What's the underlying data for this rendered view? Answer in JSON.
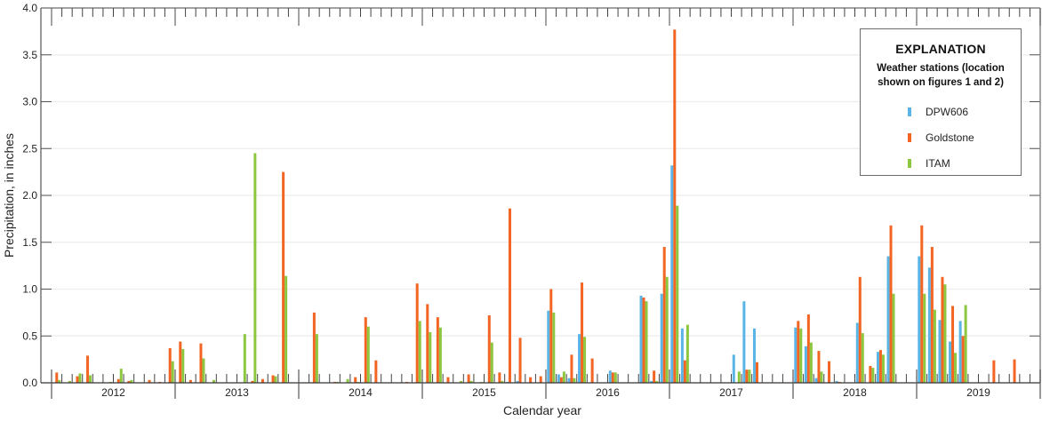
{
  "chart_data": {
    "type": "bar",
    "title": "",
    "xlabel": "Calendar year",
    "ylabel": "Precipitation, in inches",
    "ylim": [
      0,
      4.0
    ],
    "yticks": [
      "0.0",
      "0.5",
      "1.0",
      "1.5",
      "2.0",
      "2.5",
      "3.0",
      "3.5",
      "4.0"
    ],
    "grid": true,
    "legend_position": "upper right",
    "years": [
      "2012",
      "2013",
      "2014",
      "2015",
      "2016",
      "2017",
      "2018",
      "2019"
    ],
    "categories_note": "Monthly bars, January 2012 through December 2019 (96 months)",
    "series": [
      {
        "name": "DPW606",
        "color": "#5ab4e5",
        "values": [
          0,
          0,
          0,
          0,
          0,
          0,
          0,
          0,
          0,
          0,
          0,
          0,
          0,
          0,
          0,
          0,
          0,
          0,
          0,
          0,
          0,
          0,
          0,
          0,
          0,
          0,
          0,
          0,
          0,
          0,
          0,
          0,
          0,
          0,
          0,
          0,
          0,
          0,
          0,
          0,
          0,
          0,
          0,
          0,
          0.01,
          0.02,
          0,
          0,
          0.77,
          0.09,
          0.05,
          0.52,
          0,
          0,
          0.13,
          0,
          0,
          0.93,
          0.02,
          0.95,
          2.32,
          0.58,
          0,
          0,
          0,
          0,
          0.3,
          0.87,
          0.58,
          0,
          0,
          0,
          0.59,
          0.39,
          0.05,
          0,
          0.02,
          0,
          0.64,
          0,
          0.33,
          1.35,
          0,
          0,
          1.35,
          1.23,
          0.67,
          0.44,
          0.66,
          0,
          0,
          0,
          0,
          0,
          0,
          0
        ]
      },
      {
        "name": "Goldstone",
        "color": "#f26522",
        "values": [
          0.11,
          0,
          0.07,
          0.29,
          0,
          0,
          0.04,
          0.02,
          0,
          0.03,
          0.01,
          0.37,
          0.44,
          0.03,
          0.42,
          0,
          0,
          0,
          0,
          0.02,
          0.04,
          0.08,
          2.25,
          0,
          0,
          0.75,
          0,
          0.01,
          0,
          0.06,
          0.7,
          0.24,
          0,
          0,
          0.01,
          1.06,
          0.84,
          0.7,
          0.06,
          0,
          0.09,
          0,
          0.72,
          0.11,
          1.86,
          0.48,
          0.06,
          0.07,
          1.0,
          0.06,
          0.3,
          1.07,
          0.26,
          0,
          0.11,
          0,
          0,
          0.91,
          0.13,
          1.45,
          3.77,
          0.24,
          0,
          0,
          0,
          0,
          0,
          0.14,
          0.22,
          0,
          0,
          0,
          0.66,
          0.73,
          0.34,
          0.23,
          0.01,
          0,
          1.13,
          0.18,
          0.35,
          1.68,
          0,
          0,
          1.68,
          1.45,
          1.13,
          0.82,
          0.5,
          0,
          0,
          0.24,
          0,
          0.25,
          0,
          0
        ]
      },
      {
        "name": "ITAM",
        "color": "#8dc63f",
        "values": [
          0.03,
          0.02,
          0.1,
          0.08,
          0,
          0.01,
          0.15,
          0.03,
          0,
          0,
          0,
          0.23,
          0.36,
          0,
          0.26,
          0.03,
          0,
          0,
          0.52,
          2.45,
          0,
          0.07,
          1.14,
          0,
          0,
          0.52,
          0,
          0.01,
          0.04,
          0.01,
          0.6,
          0,
          0,
          0,
          0,
          0.66,
          0.54,
          0.59,
          0,
          0.02,
          0.02,
          0.01,
          0.43,
          0.02,
          0,
          0,
          0,
          0,
          0.75,
          0.12,
          0.05,
          0.49,
          0,
          0,
          0.11,
          0,
          0,
          0.87,
          0.02,
          1.13,
          1.89,
          0.62,
          0,
          0,
          0,
          0,
          0.12,
          0.14,
          0,
          0,
          0,
          0,
          0.58,
          0.43,
          0.12,
          0,
          0,
          0,
          0.53,
          0.16,
          0.3,
          0.95,
          0,
          0,
          0.95,
          0.78,
          1.05,
          0.32,
          0.83,
          0,
          0,
          0,
          0,
          0,
          0,
          0
        ]
      }
    ]
  },
  "legend": {
    "title": "EXPLANATION",
    "subtitle_line1": "Weather stations (location",
    "subtitle_line2": "shown on figures 1 and 2)",
    "items": [
      {
        "label": "DPW606",
        "color": "#5ab4e5"
      },
      {
        "label": "Goldstone",
        "color": "#f26522"
      },
      {
        "label": "ITAM",
        "color": "#8dc63f"
      }
    ]
  }
}
